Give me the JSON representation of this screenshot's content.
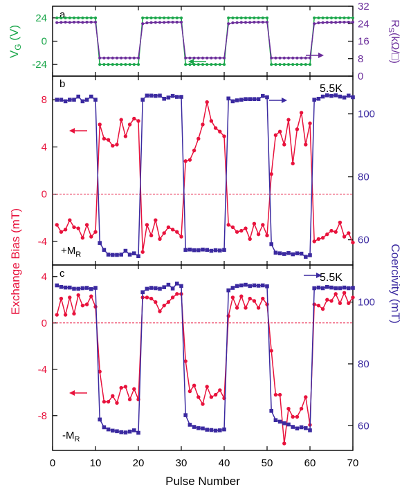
{
  "chart_data": [
    {
      "panel": "a",
      "type": "line",
      "xlabel": "",
      "x_range": [
        0,
        70
      ],
      "left_axis": {
        "label": "V_G (V)",
        "color": "#1aa64a",
        "ylim": [
          -36,
          36
        ],
        "ticks": [
          "24",
          "0",
          "-24"
        ],
        "tick_values": [
          24,
          0,
          -24
        ]
      },
      "right_axis": {
        "label": "R_S(kΩ/□)",
        "color": "#6a2c9a",
        "ylim": [
          0,
          32
        ],
        "ticks": [
          "32",
          "24",
          "16",
          "8",
          "0"
        ],
        "tick_values": [
          32,
          24,
          16,
          8,
          0
        ]
      },
      "series": [
        {
          "axis": "left",
          "color": "#1aa64a",
          "marker": "circle",
          "x": [
            1,
            2,
            3,
            4,
            5,
            6,
            7,
            8,
            9,
            10,
            11,
            12,
            13,
            14,
            15,
            16,
            17,
            18,
            19,
            20,
            21,
            22,
            23,
            24,
            25,
            26,
            27,
            28,
            29,
            30,
            31,
            32,
            33,
            34,
            35,
            36,
            37,
            38,
            39,
            40,
            41,
            42,
            43,
            44,
            45,
            46,
            47,
            48,
            49,
            50,
            51,
            52,
            53,
            54,
            55,
            56,
            57,
            58,
            59,
            60,
            61,
            62,
            63,
            64,
            65,
            66,
            67,
            68,
            69,
            70
          ],
          "y": [
            24,
            24,
            24,
            24,
            24,
            24,
            24,
            24,
            24,
            24,
            -24,
            -24,
            -24,
            -24,
            -24,
            -24,
            -24,
            -24,
            -24,
            -24,
            24,
            24,
            24,
            24,
            24,
            24,
            24,
            24,
            24,
            24,
            -24,
            -24,
            -24,
            -24,
            -24,
            -24,
            -24,
            -24,
            -24,
            -24,
            24,
            24,
            24,
            24,
            24,
            24,
            24,
            24,
            24,
            24,
            -24,
            -24,
            -24,
            -24,
            -24,
            -24,
            -24,
            -24,
            -24,
            -24,
            24,
            24,
            24,
            24,
            24,
            24,
            24,
            24,
            24,
            24
          ]
        },
        {
          "axis": "right",
          "color": "#6a2c9a",
          "marker": "circle",
          "x": [
            1,
            2,
            3,
            4,
            5,
            6,
            7,
            8,
            9,
            10,
            11,
            12,
            13,
            14,
            15,
            16,
            17,
            18,
            19,
            20,
            21,
            22,
            23,
            24,
            25,
            26,
            27,
            28,
            29,
            30,
            31,
            32,
            33,
            34,
            35,
            36,
            37,
            38,
            39,
            40,
            41,
            42,
            43,
            44,
            45,
            46,
            47,
            48,
            49,
            50,
            51,
            52,
            53,
            54,
            55,
            56,
            57,
            58,
            59,
            60,
            61,
            62,
            63,
            64,
            65,
            66,
            67,
            68,
            69,
            70
          ],
          "y": [
            24.5,
            24.6,
            24.7,
            24.6,
            24.7,
            24.7,
            24.6,
            24.7,
            24.7,
            24.7,
            8.3,
            8.3,
            8.3,
            8.3,
            8.3,
            8.3,
            8.3,
            8.3,
            8.3,
            8.3,
            24.0,
            24.4,
            24.5,
            24.6,
            24.6,
            24.6,
            24.7,
            24.7,
            24.7,
            24.7,
            8.3,
            8.3,
            8.3,
            8.3,
            8.3,
            8.3,
            8.3,
            8.3,
            8.3,
            8.3,
            24.0,
            24.4,
            24.5,
            24.6,
            24.6,
            24.6,
            24.7,
            24.7,
            24.7,
            24.7,
            8.3,
            8.3,
            8.3,
            8.3,
            8.3,
            8.3,
            8.3,
            8.3,
            8.3,
            8.3,
            24.0,
            24.4,
            24.5,
            24.6,
            24.6,
            24.6,
            24.7,
            24.7,
            24.7,
            24.7
          ]
        }
      ],
      "arrows": [
        {
          "direction": "left",
          "color": "#1aa64a"
        },
        {
          "direction": "right",
          "color": "#6a2c9a"
        }
      ]
    },
    {
      "panel": "b",
      "type": "line",
      "annotation": "5.5K",
      "magnetization_label": "+M",
      "magnetization_subscript": "R",
      "x_range": [
        0,
        70
      ],
      "left_axis": {
        "color": "#e8123c",
        "ylim": [
          -6,
          10
        ],
        "ticks": [
          "8",
          "4",
          "0",
          "-4"
        ],
        "tick_values": [
          8,
          4,
          0,
          -4
        ]
      },
      "right_axis": {
        "color": "#3b2aa0",
        "ylim": [
          52,
          112
        ],
        "ticks": [
          "100",
          "80",
          "60"
        ],
        "tick_values": [
          100,
          80,
          60
        ]
      },
      "zero_line": 0,
      "series": [
        {
          "axis": "left",
          "color": "#e8123c",
          "marker": "circle",
          "x": [
            1,
            2,
            3,
            4,
            5,
            6,
            7,
            8,
            9,
            10,
            11,
            12,
            13,
            14,
            15,
            16,
            17,
            18,
            19,
            20,
            21,
            22,
            23,
            24,
            25,
            26,
            27,
            28,
            29,
            30,
            31,
            32,
            33,
            34,
            35,
            36,
            37,
            38,
            39,
            40,
            41,
            42,
            43,
            44,
            45,
            46,
            47,
            48,
            49,
            50,
            51,
            52,
            53,
            54,
            55,
            56,
            57,
            58,
            59,
            60,
            61,
            62,
            63,
            64,
            65,
            66,
            67,
            68,
            69,
            70
          ],
          "y": [
            -2.6,
            -3.2,
            -3.0,
            -2.2,
            -2.8,
            -2.9,
            -3.7,
            -2.6,
            -3.6,
            -3.2,
            5.9,
            4.7,
            4.6,
            4.1,
            4.2,
            6.3,
            4.9,
            5.9,
            6.4,
            6.2,
            -4.9,
            -2.6,
            -3.5,
            -2.2,
            -3.8,
            -3.3,
            -2.8,
            -3.0,
            -3.2,
            -3.6,
            2.8,
            2.9,
            3.7,
            4.7,
            5.9,
            7.8,
            6.2,
            5.6,
            5.3,
            4.9,
            -2.6,
            -2.8,
            -3.2,
            -3.1,
            -2.9,
            -3.8,
            -2.5,
            -3.4,
            -2.6,
            -3.5,
            1.7,
            5.0,
            5.3,
            4.2,
            6.3,
            2.6,
            5.5,
            6.9,
            4.2,
            6.0,
            -4.0,
            -3.8,
            -3.7,
            -3.4,
            -3.1,
            -3.2,
            -2.4,
            -3.6,
            -3.3,
            -4.1
          ]
        },
        {
          "axis": "right",
          "color": "#3b2aa0",
          "marker": "square",
          "x": [
            1,
            2,
            3,
            4,
            5,
            6,
            7,
            8,
            9,
            10,
            11,
            12,
            13,
            14,
            15,
            16,
            17,
            18,
            19,
            20,
            21,
            22,
            23,
            24,
            25,
            26,
            27,
            28,
            29,
            30,
            31,
            32,
            33,
            34,
            35,
            36,
            37,
            38,
            39,
            40,
            41,
            42,
            43,
            44,
            45,
            46,
            47,
            48,
            49,
            50,
            51,
            52,
            53,
            54,
            55,
            56,
            57,
            58,
            59,
            60,
            61,
            62,
            63,
            64,
            65,
            66,
            67,
            68,
            69,
            70
          ],
          "y": [
            104.5,
            104.5,
            104.0,
            104.5,
            104.5,
            105.5,
            104.0,
            104.5,
            105.5,
            104.5,
            59.0,
            56.8,
            55.3,
            55.2,
            55.2,
            55.3,
            56.5,
            55.3,
            55.7,
            54.8,
            104.5,
            105.8,
            105.8,
            105.7,
            105.8,
            104.8,
            105.2,
            105.7,
            105.4,
            105.4,
            56.8,
            56.9,
            56.7,
            56.7,
            56.9,
            56.8,
            56.5,
            56.7,
            56.6,
            56.8,
            104.9,
            104.0,
            104.3,
            104.5,
            104.7,
            104.7,
            104.7,
            104.7,
            105.7,
            105.3,
            58.6,
            55.9,
            55.7,
            55.5,
            55.8,
            55.4,
            55.7,
            55.6,
            54.6,
            55.1,
            104.5,
            104.8,
            105.5,
            105.9,
            105.7,
            105.9,
            105.5,
            105.2,
            105.8,
            105.3
          ]
        }
      ],
      "arrows": [
        {
          "direction": "left",
          "color": "#e8123c"
        },
        {
          "direction": "right",
          "color": "#3b2aa0"
        }
      ]
    },
    {
      "panel": "c",
      "type": "line",
      "annotation": "5.5K",
      "magnetization_label": "-M",
      "magnetization_subscript": "R",
      "xlabel": "Pulse Number",
      "xticks": [
        "0",
        "10",
        "20",
        "30",
        "40",
        "50",
        "60",
        "70"
      ],
      "xtick_values": [
        0,
        10,
        20,
        30,
        40,
        50,
        60,
        70
      ],
      "x_range": [
        0,
        70
      ],
      "left_axis": {
        "color": "#e8123c",
        "ylim": [
          -11,
          5
        ],
        "ticks": [
          "4",
          "0",
          "-4",
          "-8"
        ],
        "tick_values": [
          4,
          0,
          -4,
          -8
        ]
      },
      "right_axis": {
        "color": "#3b2aa0",
        "ylim": [
          52,
          112
        ],
        "ticks": [
          "100",
          "80",
          "60"
        ],
        "tick_values": [
          100,
          80,
          60
        ]
      },
      "zero_line": 0,
      "series": [
        {
          "axis": "left",
          "color": "#e8123c",
          "marker": "circle",
          "x": [
            1,
            2,
            3,
            4,
            5,
            6,
            7,
            8,
            9,
            10,
            11,
            12,
            13,
            14,
            15,
            16,
            17,
            18,
            19,
            20,
            21,
            22,
            23,
            24,
            25,
            26,
            27,
            28,
            29,
            30,
            31,
            32,
            33,
            34,
            35,
            36,
            37,
            38,
            39,
            40,
            41,
            42,
            43,
            44,
            45,
            46,
            47,
            48,
            49,
            50,
            51,
            52,
            53,
            54,
            55,
            56,
            57,
            58,
            59,
            60,
            61,
            62,
            63,
            64,
            65,
            66,
            67,
            68,
            69,
            70
          ],
          "y": [
            0.7,
            2.1,
            0.7,
            2.2,
            0.8,
            2.4,
            1.5,
            1.6,
            2.3,
            1.4,
            -4.2,
            -6.8,
            -6.8,
            -6.3,
            -6.9,
            -5.6,
            -5.5,
            -6.6,
            -5.7,
            -6.6,
            2.2,
            2.2,
            2.1,
            1.8,
            1.0,
            1.5,
            1.8,
            2.2,
            2.5,
            2.5,
            -3.3,
            -5.9,
            -5.4,
            -6.4,
            -7.0,
            -5.5,
            -6.4,
            -6.2,
            -5.8,
            -6.5,
            0.6,
            2.2,
            1.3,
            2.3,
            1.3,
            2.1,
            1.9,
            1.3,
            2.1,
            1.6,
            -2.4,
            -6.2,
            -6.2,
            -10.4,
            -7.4,
            -8.1,
            -8.1,
            -7.4,
            -6.4,
            -8.8,
            1.6,
            1.5,
            1.2,
            2.0,
            1.9,
            2.5,
            1.7,
            2.6,
            1.7,
            2.2
          ]
        },
        {
          "axis": "right",
          "color": "#3b2aa0",
          "marker": "square",
          "x": [
            1,
            2,
            3,
            4,
            5,
            6,
            7,
            8,
            9,
            10,
            11,
            12,
            13,
            14,
            15,
            16,
            17,
            18,
            19,
            20,
            21,
            22,
            23,
            24,
            25,
            26,
            27,
            28,
            29,
            30,
            31,
            32,
            33,
            34,
            35,
            36,
            37,
            38,
            39,
            40,
            41,
            42,
            43,
            44,
            45,
            46,
            47,
            48,
            49,
            50,
            51,
            52,
            53,
            54,
            55,
            56,
            57,
            58,
            59,
            60,
            61,
            62,
            63,
            64,
            65,
            66,
            67,
            68,
            69,
            70
          ],
          "y": [
            105.4,
            104.9,
            104.7,
            104.7,
            104.3,
            104.3,
            104.5,
            104.6,
            104.2,
            104.6,
            62.0,
            59.5,
            58.8,
            58.4,
            58.2,
            57.9,
            57.8,
            58.1,
            58.5,
            57.7,
            103.2,
            104.3,
            104.6,
            104.5,
            104.3,
            104.8,
            105.6,
            104.4,
            106.0,
            105.2,
            63.4,
            60.3,
            59.6,
            59.2,
            59.1,
            58.7,
            58.6,
            58.4,
            58.5,
            58.8,
            103.8,
            104.6,
            105.2,
            105.4,
            105.6,
            105.2,
            105.4,
            105.3,
            105.4,
            105.1,
            64.8,
            61.8,
            61.3,
            60.8,
            60.4,
            59.6,
            59.1,
            59.5,
            59.2,
            58.5,
            104.5,
            104.7,
            104.5,
            104.9,
            104.7,
            104.5,
            104.5,
            104.7,
            104.5,
            104.6
          ]
        }
      ],
      "arrows": [
        {
          "direction": "left",
          "color": "#e8123c"
        },
        {
          "direction": "right",
          "color": "#3b2aa0"
        }
      ]
    }
  ],
  "labels": {
    "panel_a": "a",
    "panel_b": "b",
    "panel_c": "c",
    "vg_main": "V",
    "vg_sub": "G",
    "vg_unit": " (V)",
    "rs_main": "R",
    "rs_sub": "S",
    "rs_unit": "(kΩ/□)",
    "exchange_bias": "Exchange Bias (mT)",
    "coercivity": "Coercivity (mT)",
    "x_axis": "Pulse Number"
  },
  "colors": {
    "green": "#1aa64a",
    "purple": "#6a2c9a",
    "red": "#e8123c",
    "navy": "#3b2aa0"
  }
}
